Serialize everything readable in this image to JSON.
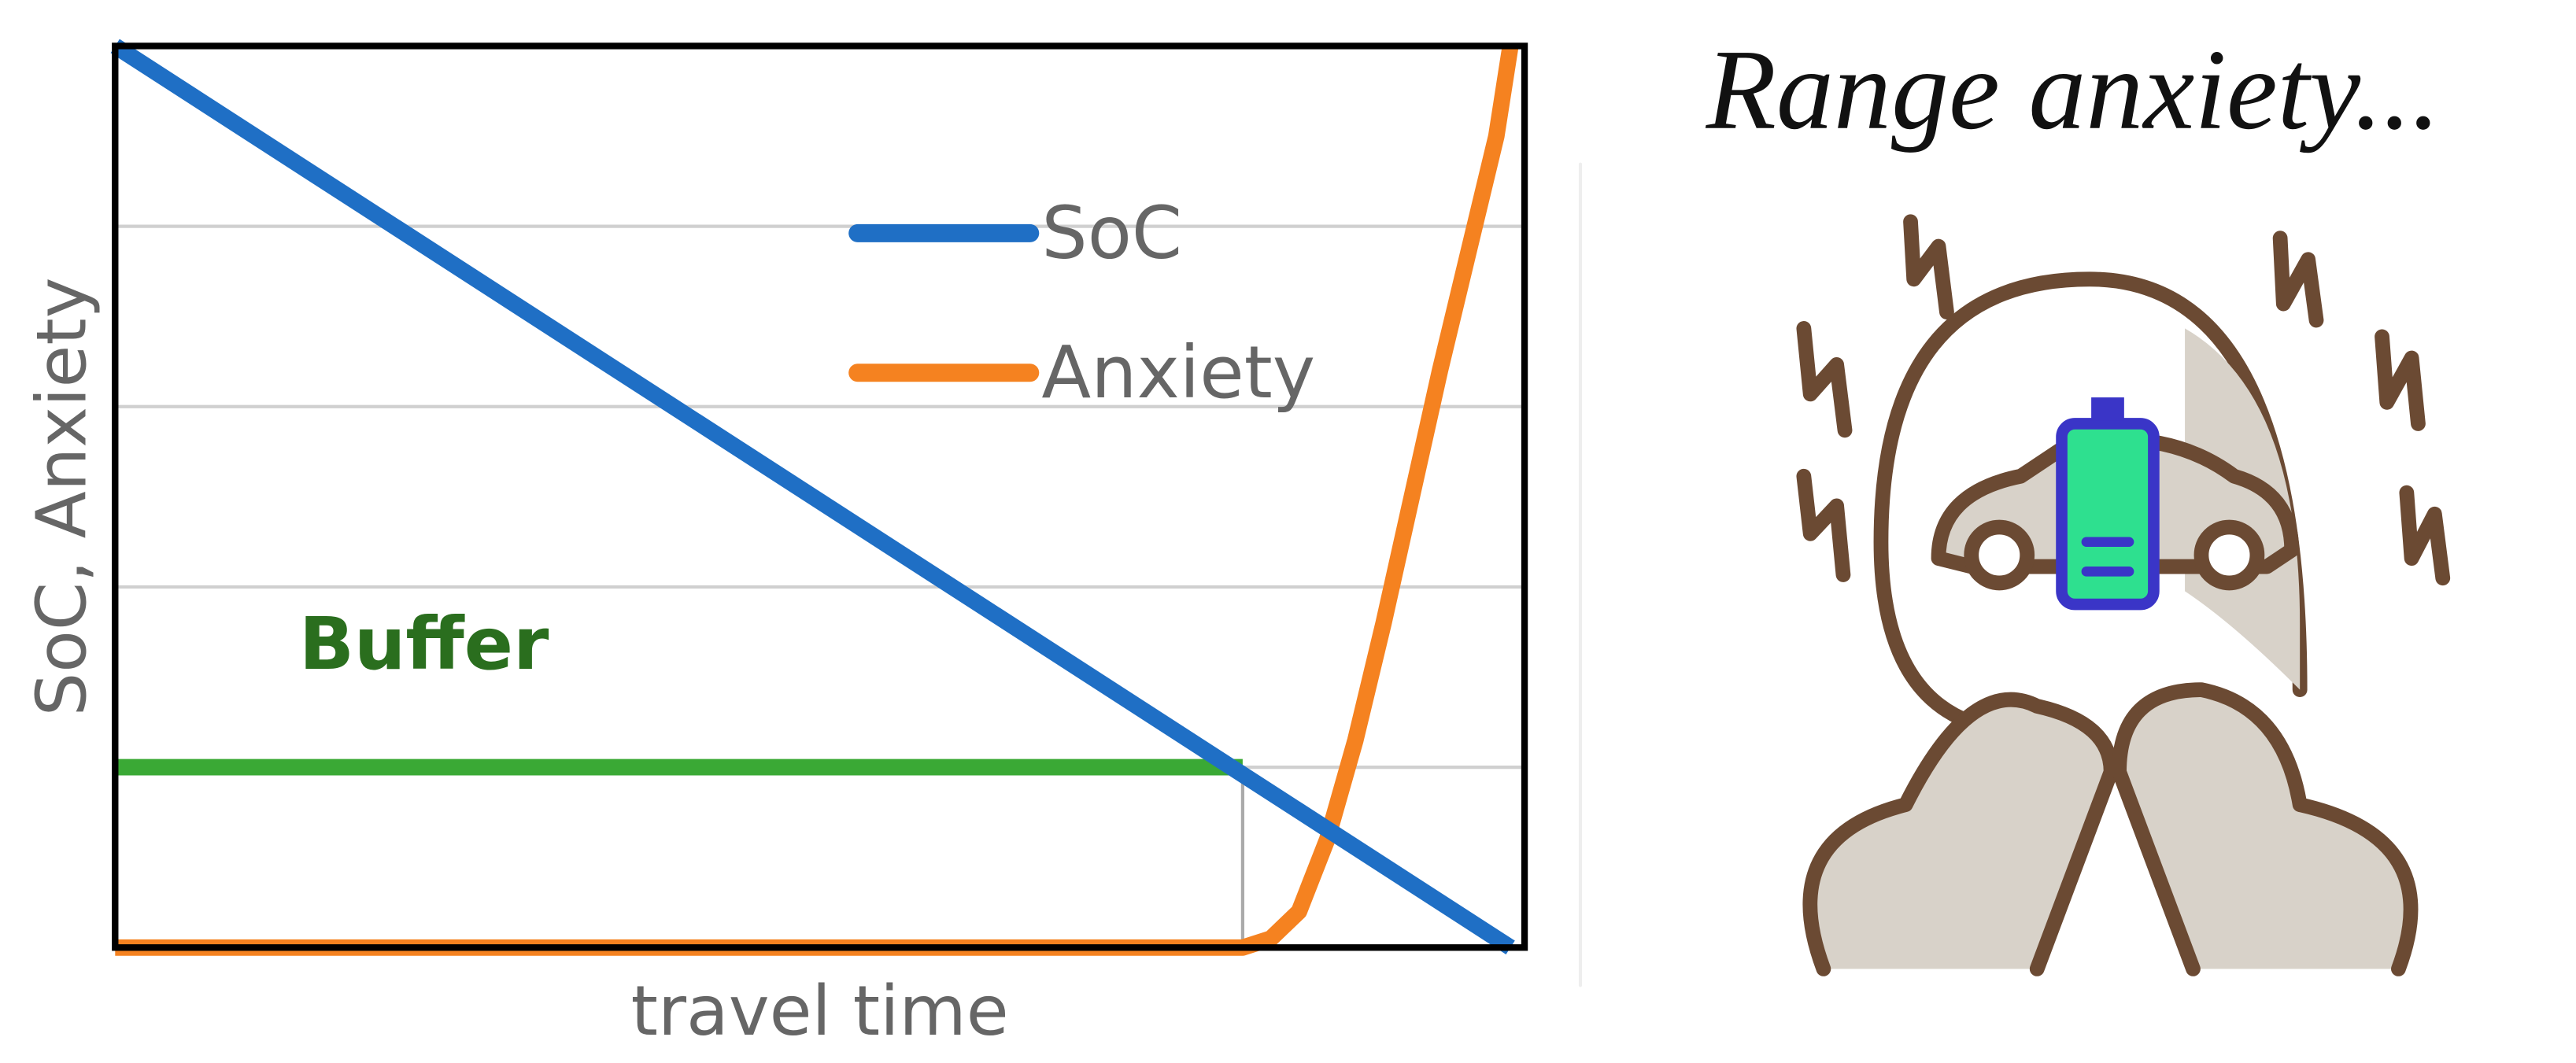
{
  "chart_data": {
    "type": "line",
    "xlabel": "travel time",
    "ylabel": "SoC, Anxiety",
    "xlim": [
      0,
      100
    ],
    "ylim": [
      0,
      100
    ],
    "ygrid": [
      20,
      40,
      60,
      80
    ],
    "legend": "upper center",
    "series": [
      {
        "name": "SoC",
        "color": "#1f6fc5",
        "x": [
          0,
          99
        ],
        "values": [
          100,
          0
        ]
      },
      {
        "name": "Anxiety",
        "color": "#f58220",
        "x": [
          0,
          10,
          20,
          30,
          40,
          50,
          60,
          70,
          80,
          82,
          84,
          86,
          88,
          90,
          92,
          94,
          96,
          98,
          99
        ],
        "values": [
          0,
          0,
          0,
          0,
          0,
          0,
          0,
          0,
          0,
          1,
          4,
          12,
          23,
          36,
          50,
          64,
          77,
          90,
          100
        ]
      }
    ],
    "annotations": [
      {
        "text": "Buffer",
        "y": 20,
        "x": [
          0,
          80
        ],
        "color": "#3aa935",
        "text_color": "#2a6e1e"
      }
    ]
  },
  "illustration": {
    "caption": "Range anxiety..."
  }
}
